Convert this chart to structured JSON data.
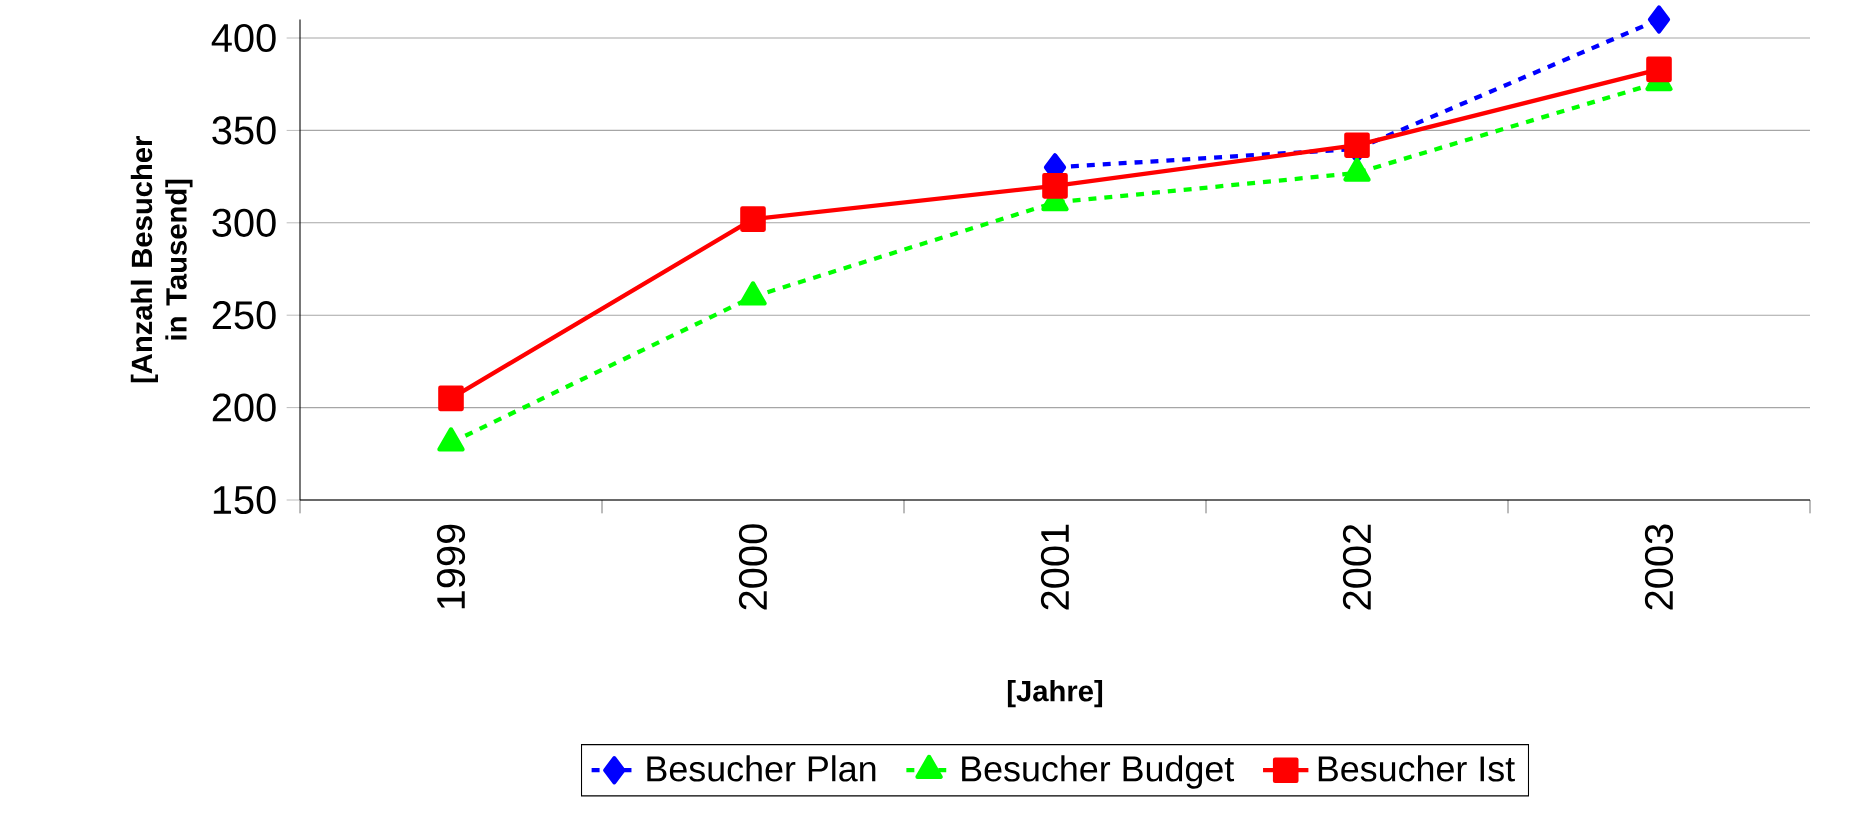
{
  "chart_data": {
    "type": "line",
    "xlabel": "[Jahre]",
    "ylabel": "[Anzahl Besucher in Tausend]",
    "categories": [
      "1999",
      "2000",
      "2001",
      "2002",
      "2003"
    ],
    "series": [
      {
        "name": "Besucher Plan",
        "color": "#0000ff",
        "marker": "diamond",
        "line_style": "dashed",
        "values": [
          null,
          null,
          330,
          340,
          410
        ]
      },
      {
        "name": "Besucher Budget",
        "color": "#00ff00",
        "marker": "triangle",
        "line_style": "dashed",
        "values": [
          181,
          260,
          311,
          327,
          376
        ]
      },
      {
        "name": "Besucher Ist",
        "color": "#ff0000",
        "marker": "square",
        "line_style": "solid",
        "values": [
          205,
          302,
          320,
          342,
          383
        ]
      }
    ],
    "ylim": [
      150,
      410
    ],
    "yticks": [
      150,
      200,
      250,
      300,
      350,
      400
    ],
    "grid": "y",
    "legend": "bottom"
  }
}
